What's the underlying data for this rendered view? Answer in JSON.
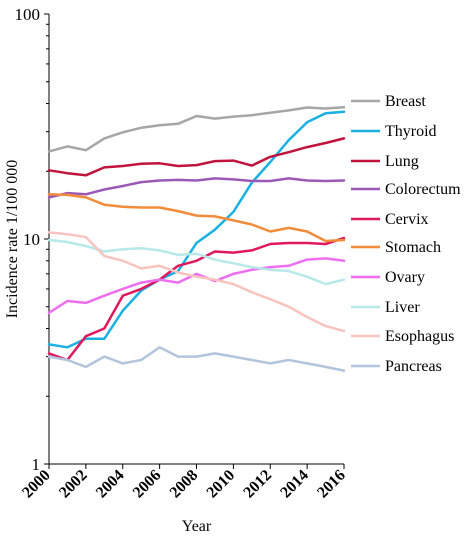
{
  "chart_data": {
    "type": "line",
    "title": "",
    "xlabel": "Year",
    "ylabel": "Incidence rate 1/100 000",
    "yscale": "log",
    "ylim": [
      1,
      100
    ],
    "xlim": [
      2000,
      2016
    ],
    "y_ticks": [
      1,
      10,
      100
    ],
    "y_tick_labels": [
      "1",
      "10",
      "100"
    ],
    "x_ticks": [
      2000,
      2002,
      2004,
      2006,
      2008,
      2010,
      2012,
      2014,
      2016
    ],
    "x_tick_labels": [
      "2000",
      "2002",
      "2004",
      "2006",
      "2008",
      "2010",
      "2012",
      "2014",
      "2016"
    ],
    "grid": false,
    "legend": "right, labels at line ends",
    "x": [
      2000,
      2001,
      2002,
      2003,
      2004,
      2005,
      2006,
      2007,
      2008,
      2009,
      2010,
      2011,
      2012,
      2013,
      2014,
      2015,
      2016
    ],
    "series": [
      {
        "name": "Breast",
        "color": "#a6a6a6",
        "values": [
          24.5,
          25.8,
          24.8,
          28.0,
          29.8,
          31.2,
          32.0,
          32.5,
          35.2,
          34.3,
          35.0,
          35.5,
          36.4,
          37.3,
          38.4,
          38.0,
          38.5
        ]
      },
      {
        "name": "Thyroid",
        "color": "#1ab0e3",
        "values": [
          3.4,
          3.3,
          3.6,
          3.6,
          4.8,
          5.9,
          6.6,
          7.2,
          9.6,
          11.0,
          13.2,
          17.8,
          22.0,
          27.5,
          33.0,
          36.2,
          36.8
        ]
      },
      {
        "name": "Lung",
        "color": "#c0143c",
        "values": [
          20.2,
          19.6,
          19.2,
          20.8,
          21.1,
          21.6,
          21.7,
          21.1,
          21.3,
          22.2,
          22.3,
          21.2,
          23.2,
          24.3,
          25.6,
          26.7,
          28.0
        ]
      },
      {
        "name": "Colorectum",
        "color": "#9b59b6",
        "values": [
          15.3,
          16.0,
          15.8,
          16.6,
          17.2,
          17.9,
          18.2,
          18.3,
          18.2,
          18.6,
          18.4,
          18.1,
          18.1,
          18.6,
          18.2,
          18.1,
          18.2
        ]
      },
      {
        "name": "Cervix",
        "color": "#e0185e",
        "values": [
          3.1,
          2.9,
          3.7,
          4.0,
          5.6,
          6.0,
          6.6,
          7.6,
          8.0,
          8.8,
          8.7,
          8.9,
          9.5,
          9.6,
          9.6,
          9.5,
          10.1
        ]
      },
      {
        "name": "Stomach",
        "color": "#f28c3a",
        "values": [
          15.8,
          15.7,
          15.3,
          14.2,
          13.9,
          13.8,
          13.8,
          13.3,
          12.7,
          12.6,
          12.1,
          11.6,
          10.8,
          11.2,
          10.8,
          9.8,
          9.9
        ]
      },
      {
        "name": "Ovary",
        "color": "#ee6ef0",
        "values": [
          4.7,
          5.3,
          5.2,
          5.6,
          6.0,
          6.4,
          6.6,
          6.4,
          7.0,
          6.5,
          7.0,
          7.3,
          7.5,
          7.6,
          8.1,
          8.2,
          8.0
        ]
      },
      {
        "name": "Liver",
        "color": "#b8e8e8",
        "values": [
          9.9,
          9.7,
          9.3,
          8.8,
          9.0,
          9.1,
          8.9,
          8.5,
          8.6,
          8.1,
          7.8,
          7.5,
          7.3,
          7.2,
          6.8,
          6.3,
          6.6
        ]
      },
      {
        "name": "Esophagus",
        "color": "#f8c4c0",
        "values": [
          10.7,
          10.5,
          10.2,
          8.4,
          8.0,
          7.4,
          7.6,
          7.1,
          6.8,
          6.6,
          6.3,
          5.8,
          5.4,
          5.0,
          4.5,
          4.1,
          3.9
        ]
      },
      {
        "name": "Pancreas",
        "color": "#b3c4dd",
        "values": [
          3.0,
          2.9,
          2.7,
          3.0,
          2.8,
          2.9,
          3.3,
          3.0,
          3.0,
          3.1,
          3.0,
          2.9,
          2.8,
          2.9,
          2.8,
          2.7,
          2.6
        ]
      }
    ]
  }
}
